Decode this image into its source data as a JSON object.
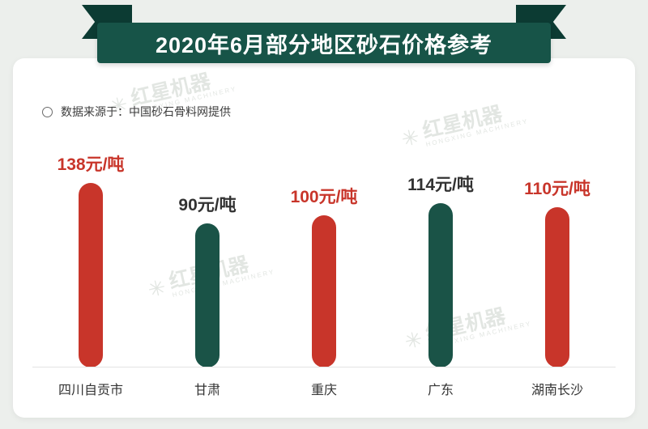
{
  "banner": {
    "title": "2020年6月部分地区砂石价格参考"
  },
  "source": {
    "label": "数据来源于：中国砂石骨料网提供"
  },
  "watermark": {
    "text": "红星机器",
    "subtext": "HONGXING MACHINERY",
    "logo_glyph": "✳"
  },
  "chart_data": {
    "type": "bar",
    "title": "2020年6月部分地区砂石价格参考",
    "source": "数据来源于：中国砂石骨料网提供",
    "categories": [
      "四川自贡市",
      "甘肃",
      "重庆",
      "广东",
      "湖南长沙"
    ],
    "values": [
      138,
      90,
      100,
      114,
      110
    ],
    "unit": "元/吨",
    "labels": [
      "138元/吨",
      "90元/吨",
      "100元/吨",
      "114元/吨",
      "110元/吨"
    ],
    "bar_colors": [
      "#c8352a",
      "#1a5347",
      "#c8352a",
      "#1a5347",
      "#c8352a"
    ],
    "label_colors": [
      "#c8352a",
      "#323232",
      "#c8352a",
      "#323232",
      "#c8352a"
    ],
    "ylim": [
      0,
      150
    ],
    "grid": false,
    "legend": "none",
    "xlabel": "",
    "ylabel": ""
  },
  "colors": {
    "banner_green": "#175448",
    "ribbon_fold_dark": "#0c3b33",
    "bar_red": "#c8352a",
    "bar_green": "#1a5347",
    "page_bg": "#ecefec",
    "card_bg": "#ffffff",
    "baseline": "#e3e3e3"
  }
}
